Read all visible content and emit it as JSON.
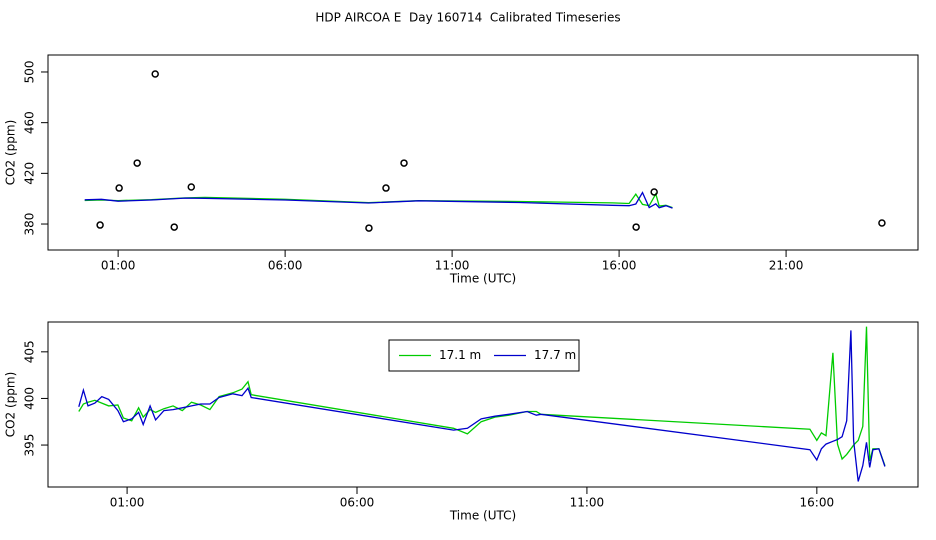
{
  "title": "HDP AIRCOA E  Day 160714  Calibrated Timeseries",
  "chart_data": [
    {
      "type": "line",
      "xlabel": "Time (UTC)",
      "ylabel": "CO2 (ppm)",
      "xlim": [
        -1.1,
        24.95
      ],
      "ylim": [
        359.5,
        513.4
      ],
      "xticks": [
        {
          "value": 1,
          "label": "01:00"
        },
        {
          "value": 6,
          "label": "06:00"
        },
        {
          "value": 11,
          "label": "11:00"
        },
        {
          "value": 16,
          "label": "16:00"
        },
        {
          "value": 21,
          "label": "21:00"
        }
      ],
      "yticks": [
        380,
        420,
        460,
        500
      ],
      "series": [
        {
          "color": "#00cc00",
          "style": "line",
          "x": [
            0,
            0.5,
            1,
            2,
            3,
            3.6,
            6,
            8.5,
            10,
            13,
            15.8,
            16.3,
            16.5,
            16.7,
            16.9,
            17.1,
            17.2,
            17.4,
            17.6
          ],
          "values": [
            398.6,
            399.0,
            398.5,
            399.2,
            400.6,
            401.0,
            399.5,
            396.8,
            398.4,
            397.8,
            396.7,
            396.2,
            403.5,
            395.5,
            394.5,
            403.8,
            394.2,
            394.8,
            393.0
          ]
        },
        {
          "color": "#0000cc",
          "style": "line",
          "x": [
            0,
            0.5,
            1,
            2,
            3,
            3.6,
            6,
            8.5,
            10,
            13,
            15.8,
            16.3,
            16.5,
            16.7,
            16.9,
            17.1,
            17.2,
            17.4,
            17.6
          ],
          "values": [
            399.1,
            399.5,
            398.0,
            399.0,
            400.5,
            400.3,
            399.0,
            396.6,
            398.3,
            397.0,
            394.8,
            394.5,
            395.8,
            404.8,
            393.0,
            396.0,
            392.8,
            394.5,
            392.6
          ]
        },
        {
          "color": "#000000",
          "style": "points",
          "x": [
            0.46,
            1.03,
            1.57,
            2.11,
            2.68,
            3.19,
            8.51,
            9.02,
            9.56,
            16.51,
            17.05,
            23.87
          ],
          "values": [
            379.2,
            408.4,
            428.1,
            498.4,
            377.6,
            409.2,
            376.8,
            408.4,
            428.1,
            377.6,
            405.3,
            380.8
          ]
        }
      ]
    },
    {
      "type": "line",
      "xlabel": "Time (UTC)",
      "ylabel": "CO2 (ppm)",
      "xlim": [
        -0.72,
        18.2
      ],
      "ylim": [
        390.5,
        408.2
      ],
      "xticks": [
        {
          "value": 1,
          "label": "01:00"
        },
        {
          "value": 6,
          "label": "06:00"
        },
        {
          "value": 11,
          "label": "11:00"
        },
        {
          "value": 16,
          "label": "16:00"
        }
      ],
      "yticks": [
        395,
        400,
        405
      ],
      "legend": "top",
      "series": [
        {
          "name": "17.1 m",
          "color": "#00cc00",
          "style": "line",
          "x": [
            -0.05,
            0.05,
            0.15,
            0.3,
            0.45,
            0.6,
            0.8,
            0.92,
            1.1,
            1.25,
            1.35,
            1.5,
            1.62,
            1.8,
            2.0,
            2.2,
            2.4,
            2.6,
            2.8,
            3.0,
            3.3,
            3.5,
            3.63,
            3.7,
            8.1,
            8.4,
            8.7,
            9.0,
            9.3,
            9.7,
            9.9,
            10.0,
            15.85,
            16.0,
            16.1,
            16.2,
            16.35,
            16.45,
            16.55,
            16.65,
            16.74,
            16.8,
            16.9,
            17.0,
            17.08,
            17.15,
            17.22,
            17.35,
            17.48
          ],
          "values": [
            398.6,
            399.4,
            399.6,
            399.8,
            399.5,
            399.2,
            399.3,
            397.9,
            397.6,
            399.0,
            398.0,
            398.8,
            398.5,
            398.9,
            399.2,
            398.7,
            399.6,
            399.3,
            398.8,
            400.2,
            400.6,
            401.0,
            401.8,
            400.4,
            396.8,
            396.2,
            397.5,
            398.0,
            398.2,
            398.6,
            398.6,
            398.3,
            396.7,
            395.5,
            396.3,
            396.0,
            404.9,
            395.1,
            393.5,
            394.0,
            394.6,
            395.0,
            395.5,
            397.0,
            407.7,
            393.3,
            394.6,
            394.6,
            392.8
          ]
        },
        {
          "name": "17.7 m",
          "color": "#0000cc",
          "style": "line",
          "x": [
            -0.05,
            0.05,
            0.15,
            0.3,
            0.45,
            0.6,
            0.8,
            0.92,
            1.1,
            1.25,
            1.35,
            1.5,
            1.62,
            1.8,
            2.0,
            2.2,
            2.4,
            2.6,
            2.8,
            3.0,
            3.3,
            3.5,
            3.63,
            3.7,
            8.1,
            8.4,
            8.7,
            9.0,
            9.3,
            9.7,
            9.9,
            10.0,
            15.85,
            16.0,
            16.1,
            16.2,
            16.35,
            16.45,
            16.55,
            16.65,
            16.74,
            16.8,
            16.9,
            17.0,
            17.08,
            17.15,
            17.22,
            17.35,
            17.48
          ],
          "values": [
            399.1,
            400.9,
            399.2,
            399.5,
            400.2,
            399.9,
            398.7,
            397.5,
            397.8,
            398.5,
            397.2,
            399.2,
            397.7,
            398.7,
            398.8,
            399.0,
            399.2,
            399.4,
            399.4,
            400.1,
            400.5,
            400.3,
            401.1,
            400.1,
            396.6,
            396.8,
            397.8,
            398.1,
            398.3,
            398.6,
            398.2,
            398.3,
            394.5,
            393.4,
            394.6,
            395.1,
            395.4,
            395.6,
            395.9,
            397.6,
            407.3,
            395.5,
            391.1,
            392.8,
            395.3,
            392.6,
            394.5,
            394.6,
            392.7
          ]
        }
      ]
    }
  ]
}
